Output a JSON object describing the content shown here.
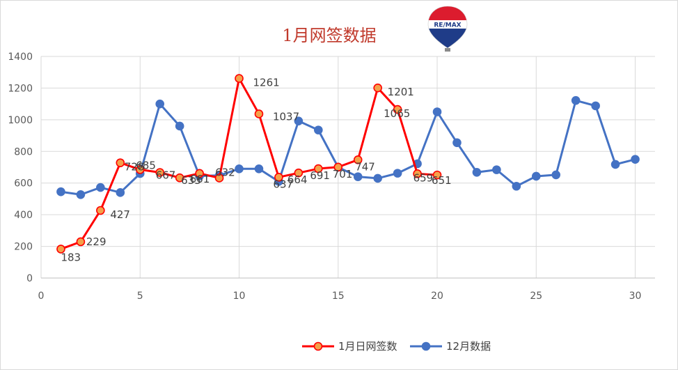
{
  "logo_text": "RE/MAX",
  "chart_data": {
    "type": "line",
    "title": "1月网签数据",
    "xlabel": "",
    "ylabel": "",
    "xlim": [
      0,
      31
    ],
    "ylim": [
      0,
      1400
    ],
    "x_ticks": [
      0,
      5,
      10,
      15,
      20,
      25,
      30
    ],
    "y_ticks": [
      0,
      200,
      400,
      600,
      800,
      1000,
      1200,
      1400
    ],
    "grid": true,
    "legend_position": "bottom",
    "series": [
      {
        "name": "1月日网签数",
        "color": "#ff0000",
        "marker_fill": "#f4a14a",
        "marker_stroke": "#ff0000",
        "show_labels": true,
        "x": [
          1,
          2,
          3,
          4,
          5,
          6,
          7,
          8,
          9,
          10,
          11,
          12,
          13,
          14,
          15,
          16,
          17,
          18,
          19,
          20
        ],
        "values": [
          183,
          229,
          427,
          728,
          685,
          667,
          633,
          661,
          632,
          1261,
          1037,
          637,
          664,
          691,
          701,
          747,
          1201,
          1065,
          659,
          651
        ]
      },
      {
        "name": "12月数据",
        "color": "#4472c4",
        "marker_fill": "#4472c4",
        "marker_stroke": "#4472c4",
        "show_labels": false,
        "x": [
          1,
          2,
          3,
          4,
          5,
          6,
          7,
          8,
          9,
          10,
          11,
          12,
          13,
          14,
          15,
          16,
          17,
          18,
          19,
          20,
          21,
          22,
          23,
          24,
          25,
          26,
          27,
          28,
          29,
          30
        ],
        "values": [
          545,
          527,
          572,
          540,
          660,
          1100,
          960,
          645,
          648,
          690,
          690,
          610,
          992,
          935,
          700,
          640,
          630,
          662,
          722,
          1050,
          855,
          668,
          684,
          580,
          643,
          652,
          1122,
          1088,
          718,
          750
        ]
      }
    ]
  }
}
